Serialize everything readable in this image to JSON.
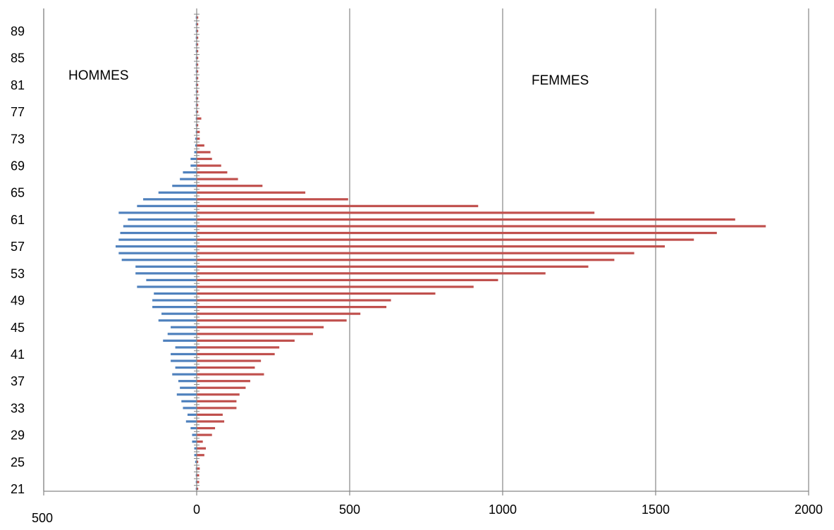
{
  "chart_data": {
    "type": "bar",
    "orientation": "horizontal",
    "chart_style": "population-pyramid",
    "grid": "vertical",
    "ages": [
      21,
      22,
      23,
      24,
      25,
      26,
      27,
      28,
      29,
      30,
      31,
      32,
      33,
      34,
      35,
      36,
      37,
      38,
      39,
      40,
      41,
      42,
      43,
      44,
      45,
      46,
      47,
      48,
      49,
      50,
      51,
      52,
      53,
      54,
      55,
      56,
      57,
      58,
      59,
      60,
      61,
      62,
      63,
      64,
      65,
      66,
      67,
      68,
      69,
      70,
      71,
      72,
      73,
      74,
      75,
      76,
      77,
      78,
      79,
      80,
      81,
      82,
      83,
      84,
      85,
      86,
      87,
      88,
      89,
      90,
      91
    ],
    "y_tick_labels": [
      "21",
      "25",
      "29",
      "33",
      "37",
      "41",
      "45",
      "49",
      "53",
      "57",
      "61",
      "65",
      "69",
      "73",
      "77",
      "81",
      "85",
      "89"
    ],
    "y_tick_ages": [
      21,
      25,
      29,
      33,
      37,
      41,
      45,
      49,
      53,
      57,
      61,
      65,
      69,
      73,
      77,
      81,
      85,
      89
    ],
    "x_tick_labels": [
      "500",
      "0",
      "500",
      "1000",
      "1500",
      "2000"
    ],
    "x_tick_values": [
      -500,
      0,
      500,
      1000,
      1500,
      2000
    ],
    "xlim": [
      -500,
      2000
    ],
    "series": [
      {
        "name": "HOMMES",
        "color": "#4f81bd",
        "values": [
          -3,
          -3,
          -3,
          -3,
          -5,
          -8,
          -8,
          -15,
          -15,
          -20,
          -35,
          -30,
          -45,
          -50,
          -65,
          -55,
          -60,
          -80,
          -70,
          -85,
          -85,
          -70,
          -110,
          -95,
          -85,
          -125,
          -115,
          -145,
          -145,
          -140,
          -195,
          -165,
          -200,
          -200,
          -245,
          -255,
          -265,
          -255,
          -250,
          -240,
          -225,
          -255,
          -195,
          -175,
          -125,
          -80,
          -55,
          -45,
          -20,
          -20,
          -8,
          -5,
          -5,
          -3,
          -3,
          -3,
          -3,
          -3,
          -3,
          -3,
          -3,
          -3,
          -3,
          -3,
          -3,
          -3,
          -3,
          -3,
          -3,
          -3,
          -3
        ]
      },
      {
        "name": "FEMMES",
        "color": "#c0504d",
        "values": [
          5,
          8,
          8,
          10,
          5,
          25,
          30,
          20,
          50,
          60,
          90,
          85,
          130,
          130,
          140,
          160,
          175,
          220,
          190,
          210,
          255,
          270,
          320,
          380,
          415,
          490,
          535,
          620,
          635,
          780,
          905,
          985,
          1140,
          1280,
          1365,
          1430,
          1530,
          1625,
          1700,
          1860,
          1760,
          1300,
          920,
          495,
          355,
          215,
          135,
          100,
          80,
          50,
          45,
          25,
          10,
          10,
          5,
          15,
          5,
          5,
          5,
          5,
          5,
          5,
          5,
          5,
          5,
          5,
          5,
          5,
          5,
          5,
          5
        ]
      }
    ]
  },
  "labels": {
    "hommes": "HOMMES",
    "femmes": "FEMMES"
  }
}
